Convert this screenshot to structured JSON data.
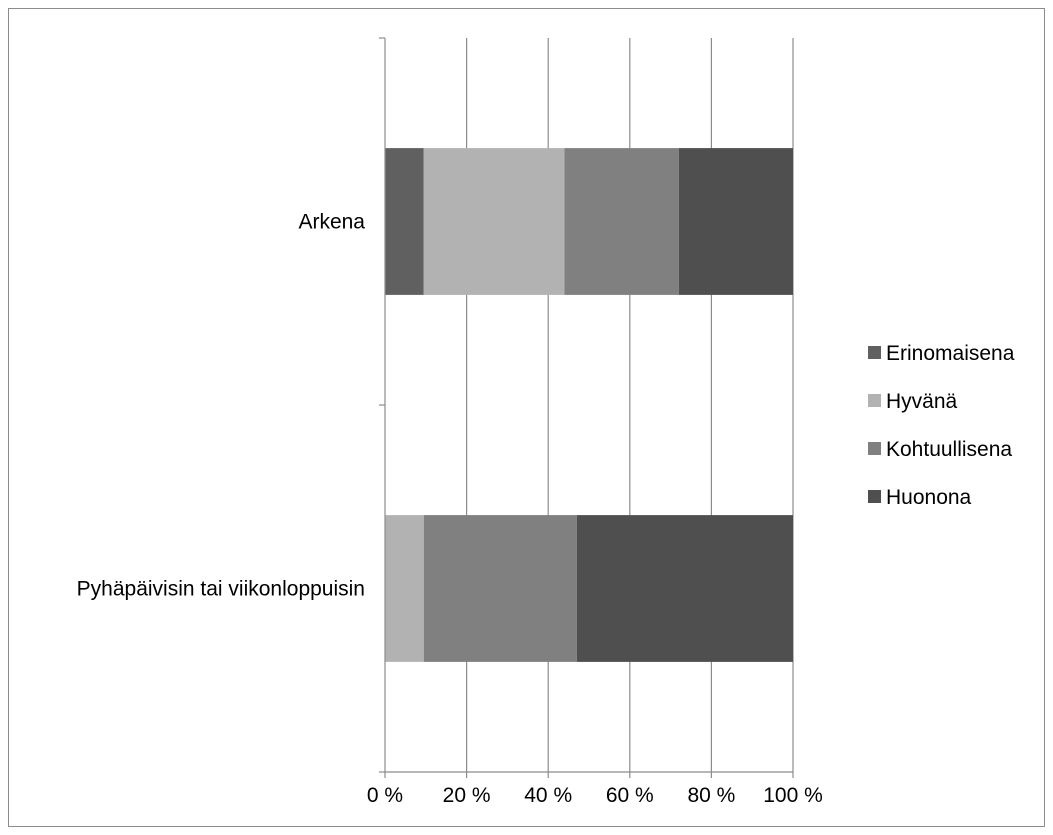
{
  "chart_data": {
    "type": "bar",
    "orientation": "horizontal",
    "stacked": "100%",
    "categories": [
      "Arkena",
      "Pyhäpäivisin tai viikonloppuisin"
    ],
    "series": [
      {
        "name": "Erinomaisena",
        "color": "#606060",
        "values": [
          9.5,
          0
        ]
      },
      {
        "name": "Hyvänä",
        "color": "#b2b2b2",
        "values": [
          34.5,
          9.5
        ]
      },
      {
        "name": "Kohtuullisena",
        "color": "#808080",
        "values": [
          28,
          37.5
        ]
      },
      {
        "name": "Huonona",
        "color": "#4f4f4f",
        "values": [
          28,
          53
        ]
      }
    ],
    "xticks": [
      "0 %",
      "20 %",
      "40 %",
      "60 %",
      "80 %",
      "100 %"
    ],
    "xlim": [
      0,
      100
    ],
    "grid": "vertical",
    "legend_position": "right"
  }
}
